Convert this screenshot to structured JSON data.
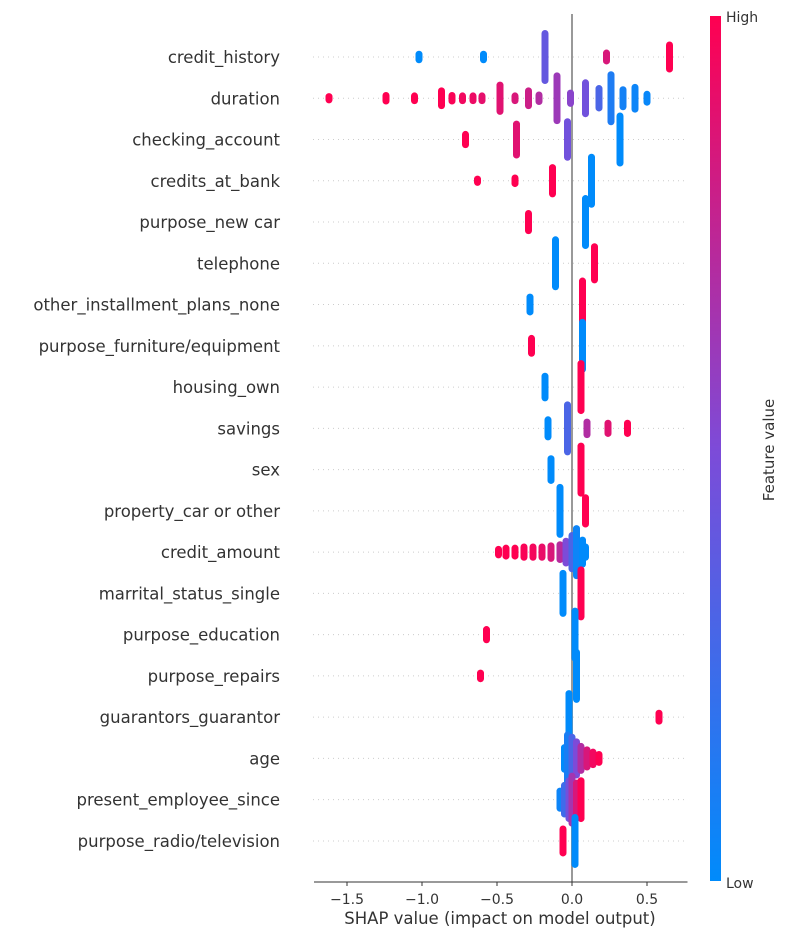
{
  "chart_data": {
    "type": "scatter",
    "subtype": "shap-beeswarm-summary",
    "title": "",
    "xlabel": "SHAP value (impact on model output)",
    "ylabel": "",
    "xlim": [
      -1.72,
      0.77
    ],
    "xticks": [
      {
        "value": -1.5,
        "label": "−1.5"
      },
      {
        "value": -1.0,
        "label": "−1.0"
      },
      {
        "value": -0.5,
        "label": "−0.5"
      },
      {
        "value": 0.0,
        "label": "0.0"
      },
      {
        "value": 0.5,
        "label": "0.5"
      }
    ],
    "grid": "dotted horizontal per feature",
    "zero_line": 0.0,
    "colorbar": {
      "title": "Feature value",
      "high_label": "High",
      "low_label": "Low",
      "low_color": "#008bfb",
      "mid_color": "#7d4bd8",
      "high_color": "#ff0051",
      "placement": "right"
    },
    "features": [
      {
        "name": "credit_history",
        "clusters": [
          {
            "x": -1.02,
            "spread": 0.1,
            "color": 0.0
          },
          {
            "x": -0.59,
            "spread": 0.1,
            "color": 0.0
          },
          {
            "x": -0.18,
            "spread": 1.0,
            "color": 0.4
          },
          {
            "x": 0.23,
            "spread": 0.15,
            "color": 0.85
          },
          {
            "x": 0.65,
            "spread": 0.5,
            "color": 1.0
          }
        ]
      },
      {
        "name": "duration",
        "clusters": [
          {
            "x": -1.62,
            "spread": 0.05,
            "color": 1.0
          },
          {
            "x": -1.24,
            "spread": 0.1,
            "color": 1.0
          },
          {
            "x": -1.05,
            "spread": 0.08,
            "color": 1.0
          },
          {
            "x": -0.87,
            "spread": 0.3,
            "color": 1.0
          },
          {
            "x": -0.8,
            "spread": 0.1,
            "color": 0.98
          },
          {
            "x": -0.73,
            "spread": 0.08,
            "color": 0.95
          },
          {
            "x": -0.66,
            "spread": 0.08,
            "color": 0.93
          },
          {
            "x": -0.6,
            "spread": 0.08,
            "color": 0.9
          },
          {
            "x": -0.48,
            "spread": 0.55,
            "color": 0.88
          },
          {
            "x": -0.38,
            "spread": 0.08,
            "color": 0.85
          },
          {
            "x": -0.29,
            "spread": 0.3,
            "color": 0.8
          },
          {
            "x": -0.22,
            "spread": 0.12,
            "color": 0.7
          },
          {
            "x": -0.1,
            "spread": 0.95,
            "color": 0.62
          },
          {
            "x": -0.01,
            "spread": 0.2,
            "color": 0.55
          },
          {
            "x": 0.09,
            "spread": 0.65,
            "color": 0.45
          },
          {
            "x": 0.18,
            "spread": 0.4,
            "color": 0.3
          },
          {
            "x": 0.26,
            "spread": 1.0,
            "color": 0.12
          },
          {
            "x": 0.34,
            "spread": 0.35,
            "color": 0.08
          },
          {
            "x": 0.42,
            "spread": 0.45,
            "color": 0.05
          },
          {
            "x": 0.5,
            "spread": 0.15,
            "color": 0.03
          }
        ]
      },
      {
        "name": "checking_account",
        "clusters": [
          {
            "x": -0.71,
            "spread": 0.2,
            "color": 1.0
          },
          {
            "x": -0.37,
            "spread": 0.65,
            "color": 0.88
          },
          {
            "x": -0.03,
            "spread": 0.75,
            "color": 0.45
          },
          {
            "x": 0.32,
            "spread": 1.0,
            "color": 0.0
          }
        ]
      },
      {
        "name": "credits_at_bank",
        "clusters": [
          {
            "x": -0.63,
            "spread": 0.05,
            "color": 1.0
          },
          {
            "x": -0.38,
            "spread": 0.1,
            "color": 1.0
          },
          {
            "x": -0.13,
            "spread": 0.55,
            "color": 1.0
          },
          {
            "x": 0.13,
            "spread": 1.0,
            "color": 0.0
          }
        ]
      },
      {
        "name": "purpose_new car",
        "clusters": [
          {
            "x": -0.29,
            "spread": 0.35,
            "color": 1.0
          },
          {
            "x": 0.09,
            "spread": 1.0,
            "color": 0.0
          }
        ]
      },
      {
        "name": "telephone",
        "clusters": [
          {
            "x": -0.11,
            "spread": 1.0,
            "color": 0.0
          },
          {
            "x": 0.15,
            "spread": 0.7,
            "color": 1.0
          }
        ]
      },
      {
        "name": "other_installment_plans_none",
        "clusters": [
          {
            "x": -0.28,
            "spread": 0.3,
            "color": 0.0
          },
          {
            "x": 0.07,
            "spread": 1.0,
            "color": 1.0
          }
        ]
      },
      {
        "name": "purpose_furniture/equipment",
        "clusters": [
          {
            "x": -0.27,
            "spread": 0.3,
            "color": 1.0
          },
          {
            "x": 0.07,
            "spread": 1.0,
            "color": 0.0
          }
        ]
      },
      {
        "name": "housing_own",
        "clusters": [
          {
            "x": -0.18,
            "spread": 0.45,
            "color": 0.0
          },
          {
            "x": 0.06,
            "spread": 1.0,
            "color": 1.0
          }
        ]
      },
      {
        "name": "savings",
        "clusters": [
          {
            "x": -0.16,
            "spread": 0.35,
            "color": 0.0
          },
          {
            "x": -0.03,
            "spread": 1.0,
            "color": 0.3
          },
          {
            "x": 0.1,
            "spread": 0.25,
            "color": 0.7
          },
          {
            "x": 0.24,
            "spread": 0.2,
            "color": 0.88
          },
          {
            "x": 0.37,
            "spread": 0.2,
            "color": 1.0
          }
        ]
      },
      {
        "name": "sex",
        "clusters": [
          {
            "x": -0.14,
            "spread": 0.45,
            "color": 0.0
          },
          {
            "x": 0.06,
            "spread": 1.0,
            "color": 1.0
          }
        ]
      },
      {
        "name": "property_car or other",
        "clusters": [
          {
            "x": -0.08,
            "spread": 1.0,
            "color": 0.0
          },
          {
            "x": 0.09,
            "spread": 0.55,
            "color": 1.0
          }
        ]
      },
      {
        "name": "credit_amount",
        "clusters": [
          {
            "x": -0.49,
            "spread": 0.1,
            "color": 1.0
          },
          {
            "x": -0.44,
            "spread": 0.15,
            "color": 1.0
          },
          {
            "x": -0.38,
            "spread": 0.15,
            "color": 1.0
          },
          {
            "x": -0.32,
            "spread": 0.2,
            "color": 0.98
          },
          {
            "x": -0.26,
            "spread": 0.2,
            "color": 0.96
          },
          {
            "x": -0.2,
            "spread": 0.2,
            "color": 0.92
          },
          {
            "x": -0.14,
            "spread": 0.25,
            "color": 0.85
          },
          {
            "x": -0.08,
            "spread": 0.3,
            "color": 0.72
          },
          {
            "x": -0.04,
            "spread": 0.45,
            "color": 0.5
          },
          {
            "x": 0.0,
            "spread": 0.7,
            "color": 0.3
          },
          {
            "x": 0.03,
            "spread": 1.0,
            "color": 0.05
          },
          {
            "x": 0.07,
            "spread": 0.5,
            "color": 0.0
          },
          {
            "x": 0.09,
            "spread": 0.2,
            "color": 0.0
          }
        ]
      },
      {
        "name": "marrital_status_single",
        "clusters": [
          {
            "x": -0.06,
            "spread": 0.85,
            "color": 0.0
          },
          {
            "x": 0.06,
            "spread": 1.0,
            "color": 1.0
          }
        ]
      },
      {
        "name": "purpose_education",
        "clusters": [
          {
            "x": -0.57,
            "spread": 0.2,
            "color": 1.0
          },
          {
            "x": 0.02,
            "spread": 1.0,
            "color": 0.0
          }
        ]
      },
      {
        "name": "purpose_repairs",
        "clusters": [
          {
            "x": -0.61,
            "spread": 0.1,
            "color": 1.0
          },
          {
            "x": 0.03,
            "spread": 1.0,
            "color": 0.0
          }
        ]
      },
      {
        "name": "guarantors_guarantor",
        "clusters": [
          {
            "x": -0.02,
            "spread": 1.0,
            "color": 0.0
          },
          {
            "x": 0.58,
            "spread": 0.15,
            "color": 1.0
          }
        ]
      },
      {
        "name": "age",
        "clusters": [
          {
            "x": -0.05,
            "spread": 0.45,
            "color": 0.0
          },
          {
            "x": -0.03,
            "spread": 1.0,
            "color": 0.1
          },
          {
            "x": 0.0,
            "spread": 0.9,
            "color": 0.3
          },
          {
            "x": 0.03,
            "spread": 0.7,
            "color": 0.5
          },
          {
            "x": 0.06,
            "spread": 0.5,
            "color": 0.7
          },
          {
            "x": 0.1,
            "spread": 0.35,
            "color": 0.85
          },
          {
            "x": 0.14,
            "spread": 0.25,
            "color": 0.95
          },
          {
            "x": 0.18,
            "spread": 0.15,
            "color": 1.0
          }
        ]
      },
      {
        "name": "present_employee_since",
        "clusters": [
          {
            "x": -0.08,
            "spread": 0.35,
            "color": 0.05
          },
          {
            "x": -0.05,
            "spread": 0.6,
            "color": 0.25
          },
          {
            "x": -0.02,
            "spread": 0.8,
            "color": 0.45
          },
          {
            "x": 0.0,
            "spread": 1.0,
            "color": 0.65
          },
          {
            "x": 0.03,
            "spread": 0.7,
            "color": 0.85
          },
          {
            "x": 0.06,
            "spread": 0.8,
            "color": 1.0
          }
        ]
      },
      {
        "name": "purpose_radio/television",
        "clusters": [
          {
            "x": -0.06,
            "spread": 0.5,
            "color": 1.0
          },
          {
            "x": 0.02,
            "spread": 1.0,
            "color": 0.0
          }
        ]
      }
    ]
  }
}
